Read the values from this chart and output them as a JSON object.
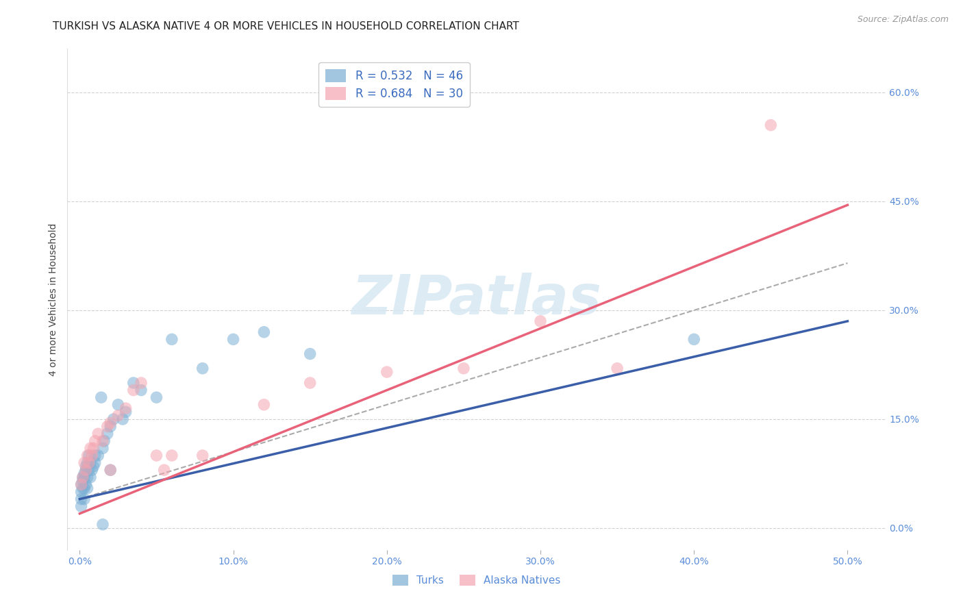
{
  "title": "TURKISH VS ALASKA NATIVE 4 OR MORE VEHICLES IN HOUSEHOLD CORRELATION CHART",
  "source": "Source: ZipAtlas.com",
  "xlabel_tick_vals": [
    0.0,
    0.1,
    0.2,
    0.3,
    0.4,
    0.5
  ],
  "xlabel_ticks": [
    "0.0%",
    "10.0%",
    "20.0%",
    "30.0%",
    "40.0%",
    "50.0%"
  ],
  "ylabel": "4 or more Vehicles in Household",
  "ylabel_tick_vals": [
    0.0,
    0.15,
    0.3,
    0.45,
    0.6
  ],
  "ylabel_ticks": [
    "0.0%",
    "15.0%",
    "30.0%",
    "45.0%",
    "60.0%"
  ],
  "xlim": [
    -0.008,
    0.525
  ],
  "ylim": [
    -0.03,
    0.66
  ],
  "turk_color": "#7BAFD4",
  "alaska_color": "#F4A4B0",
  "turk_line_color": "#3A5FA8",
  "alaska_line_color": "#E8637A",
  "dash_line_color": "#AAAAAA",
  "grid_color": "#CCCCCC",
  "background_color": "#FFFFFF",
  "tick_color": "#5B8DD9",
  "ylabel_color": "#444444",
  "title_color": "#222222",
  "source_color": "#999999",
  "watermark_color": "#D8E8F4",
  "title_fontsize": 11,
  "axis_label_fontsize": 10,
  "tick_fontsize": 10,
  "source_fontsize": 9,
  "legend_fontsize": 12,
  "watermark": "ZIPatlas",
  "turk_x": [
    0.001,
    0.001,
    0.001,
    0.001,
    0.002,
    0.002,
    0.002,
    0.003,
    0.003,
    0.003,
    0.003,
    0.004,
    0.004,
    0.004,
    0.005,
    0.005,
    0.005,
    0.006,
    0.006,
    0.007,
    0.007,
    0.008,
    0.009,
    0.01,
    0.01,
    0.012,
    0.014,
    0.015,
    0.016,
    0.018,
    0.02,
    0.022,
    0.025,
    0.028,
    0.03,
    0.04,
    0.05,
    0.06,
    0.08,
    0.1,
    0.12,
    0.15,
    0.02,
    0.035,
    0.4,
    0.015
  ],
  "turk_y": [
    0.03,
    0.04,
    0.05,
    0.06,
    0.055,
    0.065,
    0.07,
    0.04,
    0.055,
    0.07,
    0.075,
    0.06,
    0.08,
    0.085,
    0.055,
    0.07,
    0.09,
    0.08,
    0.1,
    0.07,
    0.09,
    0.08,
    0.085,
    0.09,
    0.1,
    0.1,
    0.18,
    0.11,
    0.12,
    0.13,
    0.14,
    0.15,
    0.17,
    0.15,
    0.16,
    0.19,
    0.18,
    0.26,
    0.22,
    0.26,
    0.27,
    0.24,
    0.08,
    0.2,
    0.26,
    0.005
  ],
  "alaska_x": [
    0.001,
    0.002,
    0.003,
    0.004,
    0.005,
    0.006,
    0.007,
    0.008,
    0.009,
    0.01,
    0.012,
    0.015,
    0.018,
    0.02,
    0.025,
    0.03,
    0.035,
    0.04,
    0.05,
    0.06,
    0.08,
    0.12,
    0.15,
    0.2,
    0.25,
    0.3,
    0.35,
    0.45,
    0.02,
    0.055
  ],
  "alaska_y": [
    0.06,
    0.07,
    0.09,
    0.08,
    0.1,
    0.09,
    0.11,
    0.1,
    0.11,
    0.12,
    0.13,
    0.12,
    0.14,
    0.145,
    0.155,
    0.165,
    0.19,
    0.2,
    0.1,
    0.1,
    0.1,
    0.17,
    0.2,
    0.215,
    0.22,
    0.285,
    0.22,
    0.555,
    0.08,
    0.08
  ],
  "turk_line_x0": 0.0,
  "turk_line_y0": 0.04,
  "turk_line_x1": 0.5,
  "turk_line_y1": 0.285,
  "alaska_line_x0": 0.0,
  "alaska_line_y0": 0.02,
  "alaska_line_x1": 0.5,
  "alaska_line_y1": 0.445,
  "dash_line_x0": 0.0,
  "dash_line_y0": 0.04,
  "dash_line_x1": 0.5,
  "dash_line_y1": 0.365
}
